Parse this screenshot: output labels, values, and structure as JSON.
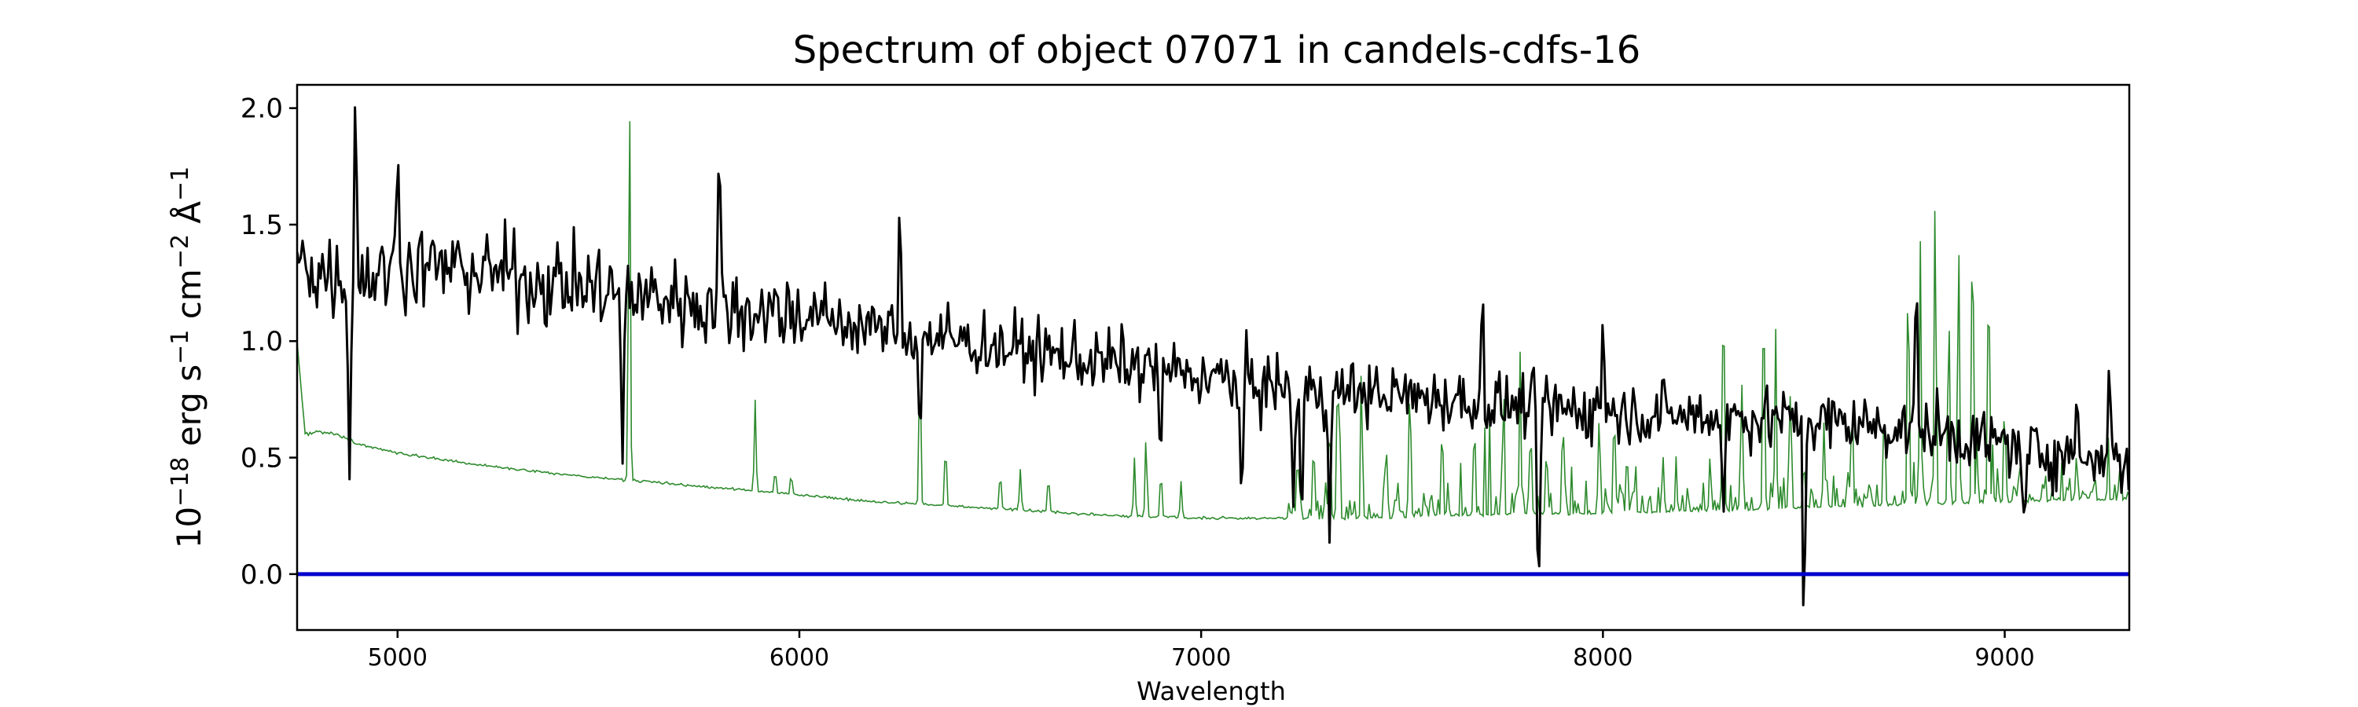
{
  "chart_data": {
    "type": "line",
    "title": "Spectrum of object 07071 in candels-cdfs-16",
    "xlabel": "Wavelength",
    "ylabel": {
      "base": "10",
      "exp1": "−18",
      "t1": " erg s",
      "exp2": "−1",
      "t2": " cm",
      "exp3": "−2",
      "t3": " Å",
      "exp4": "−1"
    },
    "xlim": [
      4750,
      9310
    ],
    "ylim": [
      -0.24,
      2.1
    ],
    "xticks": [
      5000,
      6000,
      7000,
      8000,
      9000
    ],
    "xtick_labels": [
      "5000",
      "6000",
      "7000",
      "8000",
      "9000"
    ],
    "yticks": [
      0.0,
      0.5,
      1.0,
      1.5,
      2.0
    ],
    "ytick_labels": [
      "0.0",
      "0.5",
      "1.0",
      "1.5",
      "2.0"
    ],
    "grid": false,
    "legend": "none",
    "colors": {
      "flux": "#000000",
      "sky": "#2e8b2e",
      "zero": "#0000cc"
    },
    "zero_level": 0.0,
    "flux_anchors": [
      [
        4750,
        1.35
      ],
      [
        4800,
        1.3
      ],
      [
        4900,
        1.28
      ],
      [
        5000,
        1.3
      ],
      [
        5100,
        1.32
      ],
      [
        5200,
        1.3
      ],
      [
        5400,
        1.25
      ],
      [
        5600,
        1.2
      ],
      [
        5800,
        1.15
      ],
      [
        6000,
        1.12
      ],
      [
        6200,
        1.05
      ],
      [
        6400,
        1.0
      ],
      [
        6600,
        0.95
      ],
      [
        6800,
        0.9
      ],
      [
        7000,
        0.85
      ],
      [
        7200,
        0.8
      ],
      [
        7400,
        0.78
      ],
      [
        7600,
        0.75
      ],
      [
        7800,
        0.72
      ],
      [
        8000,
        0.7
      ],
      [
        8200,
        0.68
      ],
      [
        8400,
        0.67
      ],
      [
        8600,
        0.65
      ],
      [
        8800,
        0.62
      ],
      [
        9000,
        0.55
      ],
      [
        9200,
        0.5
      ],
      [
        9310,
        0.48
      ]
    ],
    "flux_features": [
      [
        4880,
        0.37
      ],
      [
        4895,
        2.0
      ],
      [
        5000,
        1.98
      ],
      [
        5560,
        0.4
      ],
      [
        5800,
        1.75
      ],
      [
        6250,
        1.48
      ],
      [
        6300,
        0.6
      ],
      [
        6900,
        0.5
      ],
      [
        7100,
        0.25
      ],
      [
        7230,
        0.25
      ],
      [
        7250,
        0.2
      ],
      [
        7320,
        0.15
      ],
      [
        7700,
        1.15
      ],
      [
        7840,
        -0.14
      ],
      [
        8000,
        1.1
      ],
      [
        8300,
        0.28
      ],
      [
        8500,
        -0.14
      ],
      [
        8780,
        1.18
      ],
      [
        9000,
        0.6
      ],
      [
        9050,
        0.1
      ],
      [
        9180,
        0.75
      ],
      [
        9260,
        0.98
      ],
      [
        9310,
        0.3
      ]
    ],
    "sky_anchors": [
      [
        4750,
        1.0
      ],
      [
        4770,
        0.6
      ],
      [
        4800,
        0.61
      ],
      [
        4850,
        0.6
      ],
      [
        4900,
        0.56
      ],
      [
        5000,
        0.52
      ],
      [
        5200,
        0.47
      ],
      [
        5400,
        0.43
      ],
      [
        5600,
        0.4
      ],
      [
        5800,
        0.37
      ],
      [
        6000,
        0.34
      ],
      [
        6200,
        0.31
      ],
      [
        6400,
        0.29
      ],
      [
        6600,
        0.27
      ],
      [
        6800,
        0.25
      ],
      [
        7000,
        0.24
      ],
      [
        7200,
        0.24
      ],
      [
        7400,
        0.24
      ],
      [
        7600,
        0.25
      ],
      [
        7800,
        0.26
      ],
      [
        8000,
        0.26
      ],
      [
        8200,
        0.27
      ],
      [
        8400,
        0.28
      ],
      [
        8600,
        0.29
      ],
      [
        8800,
        0.3
      ],
      [
        9000,
        0.31
      ],
      [
        9200,
        0.32
      ],
      [
        9310,
        0.32
      ]
    ],
    "sky_lines": [
      [
        5577,
        2.1
      ],
      [
        5890,
        0.75
      ],
      [
        5940,
        0.45
      ],
      [
        5980,
        0.43
      ],
      [
        6300,
        0.92
      ],
      [
        6364,
        0.57
      ],
      [
        6500,
        0.45
      ],
      [
        6550,
        0.45
      ],
      [
        6620,
        0.43
      ],
      [
        6834,
        0.5
      ],
      [
        6863,
        0.6
      ],
      [
        6900,
        0.45
      ],
      [
        6950,
        0.4
      ],
      [
        7240,
        0.55
      ],
      [
        7280,
        0.6
      ],
      [
        7320,
        0.7
      ],
      [
        7340,
        0.95
      ],
      [
        7400,
        0.65
      ],
      [
        7460,
        0.55
      ],
      [
        7520,
        0.75
      ],
      [
        7600,
        0.65
      ],
      [
        7680,
        0.6
      ],
      [
        7750,
        0.55
      ],
      [
        7794,
        0.85
      ],
      [
        7820,
        0.65
      ],
      [
        7860,
        0.55
      ],
      [
        7900,
        0.6
      ],
      [
        7990,
        0.65
      ],
      [
        8030,
        0.6
      ],
      [
        8060,
        0.55
      ],
      [
        8150,
        0.5
      ],
      [
        8300,
        1.32
      ],
      [
        8345,
        0.8
      ],
      [
        8400,
        1.3
      ],
      [
        8430,
        0.9
      ],
      [
        8465,
        0.75
      ],
      [
        8500,
        0.5
      ],
      [
        8550,
        0.55
      ],
      [
        8620,
        0.7
      ],
      [
        8700,
        0.75
      ],
      [
        8760,
        1.2
      ],
      [
        8790,
        1.3
      ],
      [
        8827,
        1.68
      ],
      [
        8860,
        0.9
      ],
      [
        8885,
        1.45
      ],
      [
        8920,
        1.57
      ],
      [
        8960,
        1.42
      ],
      [
        9000,
        0.7
      ],
      [
        9040,
        0.45
      ],
      [
        9100,
        0.4
      ],
      [
        9200,
        0.35
      ]
    ]
  }
}
